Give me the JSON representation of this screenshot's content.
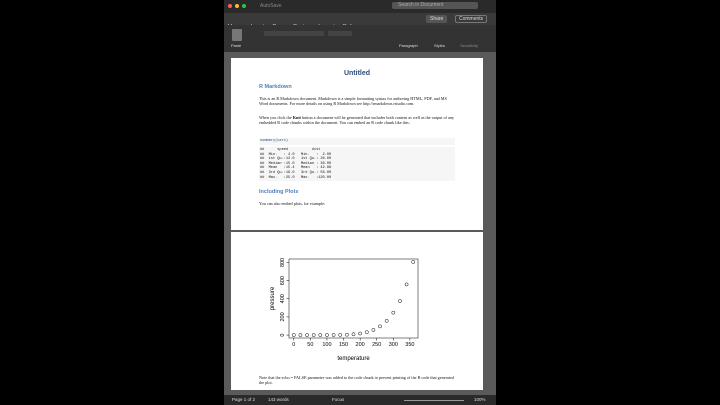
{
  "window": {
    "autosave": "AutoSave",
    "search": "Search in Document",
    "share": "Share",
    "comments": "Comments"
  },
  "tabs": [
    "Home",
    "Insert",
    "Draw",
    "Design",
    "Layout",
    "References",
    "»"
  ],
  "ribbon": {
    "paste": "Paste",
    "paragraph": "Paragraph",
    "styles": "Styles",
    "sensitivity": "Sensitivity"
  },
  "document": {
    "title": "Untitled",
    "heading1": "R Markdown",
    "para1": "This is an R Markdown document. Markdown is a simple formatting syntax for authoring HTML, PDF, and MS Word documents. For more details on using R Markdown see http://rmarkdown.rstudio.com.",
    "para2": [
      "When you click the ",
      "Knit",
      " button a document will be generated that includes both content as well as the output of any embedded R code chunks within the document. You can embed an R code chunk like this:"
    ],
    "code": "summary(cars)",
    "output": [
      "##      speed           dist       ",
      "##  Min.   : 4.0   Min.   :  2.00  ",
      "##  1st Qu.:12.0   1st Qu.: 26.00  ",
      "##  Median :15.0   Median : 36.00  ",
      "##  Mean   :15.4   Mean   : 42.98  ",
      "##  3rd Qu.:19.0   3rd Qu.: 56.00  ",
      "##  Max.   :25.0   Max.   :120.00  "
    ],
    "heading2": "Including Plots",
    "para3": "You can also embed plots, for example:",
    "para4": "Note that the echo = FALSE parameter was added to the code chunk to prevent printing of the R code that generated the plot."
  },
  "chart_data": {
    "type": "scatter",
    "x_label": "temperature",
    "y_label": "pressure",
    "x": [
      0,
      20,
      40,
      60,
      80,
      100,
      120,
      140,
      160,
      180,
      200,
      220,
      240,
      260,
      280,
      300,
      320,
      340,
      360
    ],
    "values": [
      0.0002,
      0.0012,
      0.006,
      0.03,
      0.09,
      0.27,
      0.75,
      1.85,
      4.2,
      8.8,
      17.3,
      32.1,
      57,
      96,
      157,
      247,
      376,
      558,
      806
    ],
    "xlim": [
      -14.4,
      374.4
    ],
    "ylim": [
      -32.2,
      838.2
    ],
    "xticks": [
      0,
      50,
      100,
      150,
      200,
      250,
      300,
      350
    ],
    "yticks": [
      0,
      200,
      400,
      600,
      800
    ],
    "color": "#000000"
  },
  "status": {
    "page": "Page 1 of 2",
    "words": "143 words",
    "focus": "Focus",
    "zoom": "100%"
  }
}
